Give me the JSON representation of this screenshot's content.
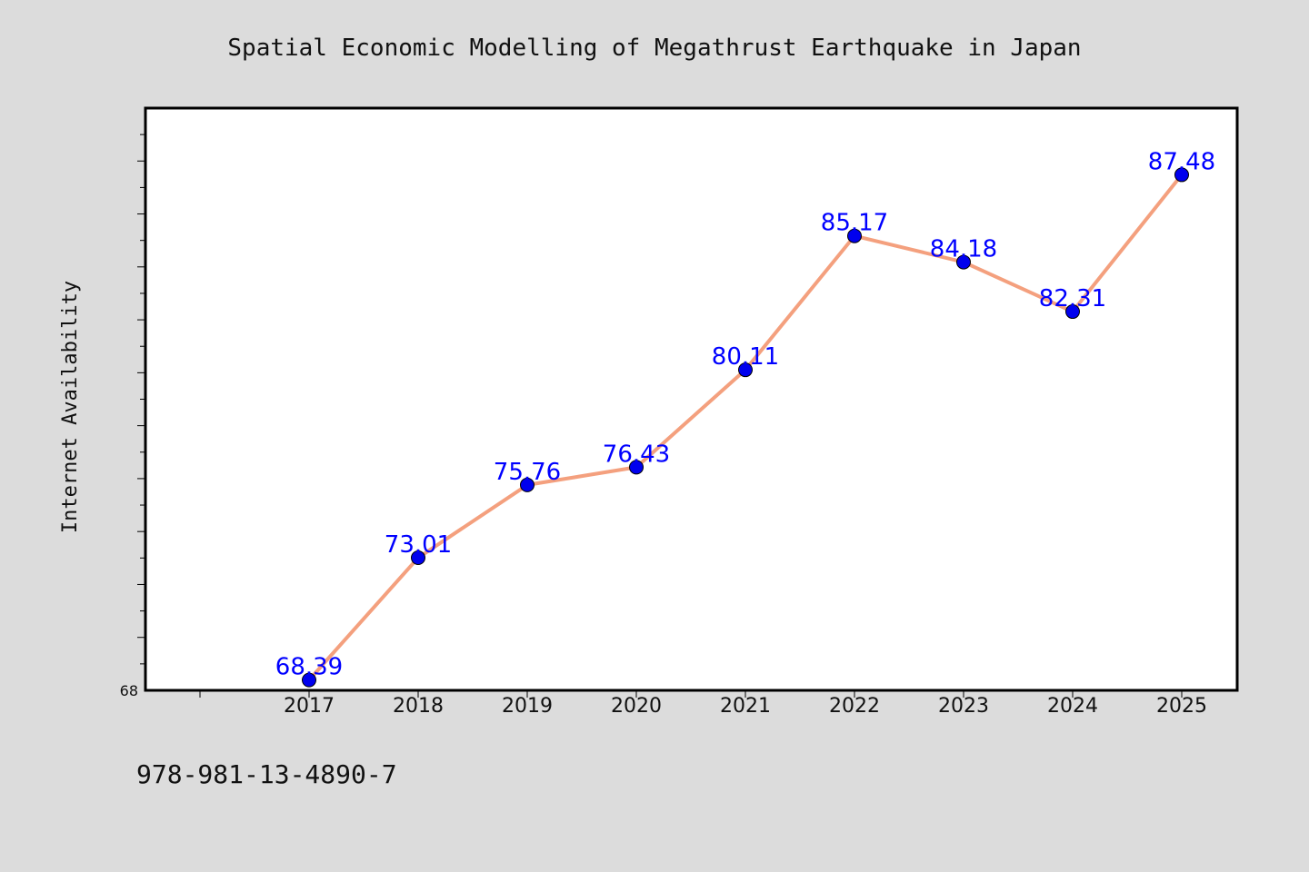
{
  "chart_data": {
    "type": "line",
    "title": "Spatial Economic Modelling of Megathrust Earthquake in Japan",
    "xlabel": "",
    "ylabel": "Internet Availability",
    "categories": [
      "2017",
      "2018",
      "2019",
      "2020",
      "2021",
      "2022",
      "2023",
      "2024",
      "2025"
    ],
    "series": [
      {
        "values": [
          68.39,
          73.01,
          75.76,
          76.43,
          80.11,
          85.17,
          84.18,
          82.31,
          87.48
        ],
        "data_labels": [
          "68.39",
          "73.01",
          "75.76",
          "76.43",
          "80.11",
          "85.17",
          "84.18",
          "82.31",
          "87.48"
        ],
        "line_color": "#f4a07e",
        "marker_color": "#0000ee",
        "label_color": "#0000ff"
      }
    ],
    "ylim": [
      68,
      90
    ],
    "y_tick_labels": [
      "68"
    ],
    "grid": false,
    "legend": "none"
  },
  "footer_text": "978-981-13-4890-7"
}
